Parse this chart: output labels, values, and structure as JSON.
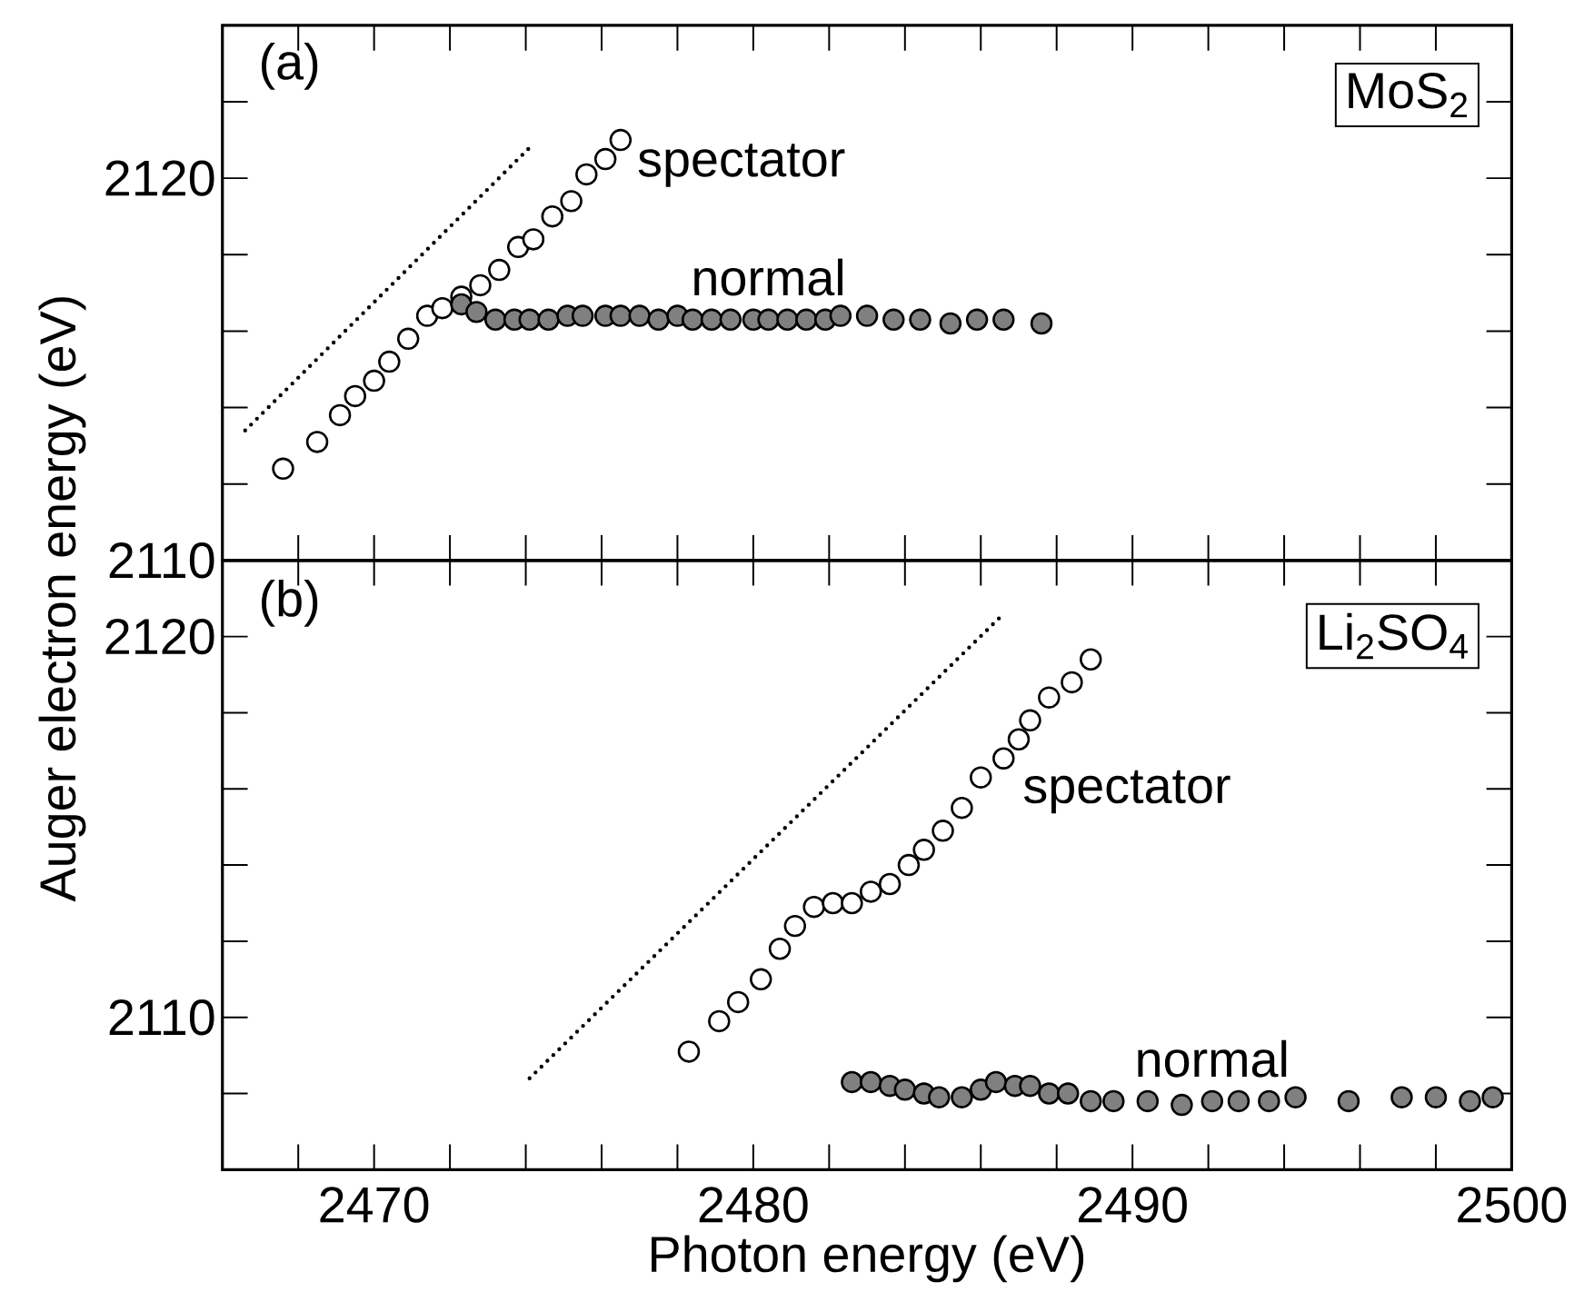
{
  "chart_data": [
    {
      "type": "scatter",
      "ylabel": "Auger electron energy (eV)",
      "annotations": [
        "(a)",
        "MoS$_{2}$"
      ],
      "xlim": [
        2466,
        2500
      ],
      "ylim": [
        2110,
        2124
      ],
      "xticks": [
        {
          "value": 2468,
          "label": null
        },
        2470,
        {
          "value": 2472,
          "label": null
        },
        {
          "value": 2474,
          "label": null
        },
        {
          "value": 2476,
          "label": null
        },
        {
          "value": 2478,
          "label": null
        },
        2480,
        {
          "value": 2482,
          "label": null
        },
        {
          "value": 2484,
          "label": null
        },
        {
          "value": 2486,
          "label": null
        },
        {
          "value": 2488,
          "label": null
        },
        2490,
        {
          "value": 2492,
          "label": null
        },
        {
          "value": 2494,
          "label": null
        },
        {
          "value": 2496,
          "label": null
        },
        {
          "value": 2498,
          "label": null
        }
      ],
      "yticks": [
        2110,
        {
          "value": 2112,
          "label": null
        },
        {
          "value": 2114,
          "label": null
        },
        {
          "value": 2116,
          "label": null
        },
        {
          "value": 2118,
          "label": null
        },
        2120,
        {
          "value": 2122,
          "label": null
        }
      ],
      "tick_labels": "y",
      "series": [
        {
          "type": "line",
          "color": "#000000",
          "line_style": "dotted",
          "marker": "none",
          "x": [
            2466.6,
            2474.1
          ],
          "values": [
            2113.4,
            2120.8
          ]
        },
        {
          "name": "spectator",
          "color": "#000000",
          "marker": "circle",
          "x": [
            2467.6,
            2468.5,
            2469.1,
            2469.5,
            2470.0,
            2470.4,
            2470.9,
            2471.4,
            2471.8,
            2472.3,
            2472.8,
            2473.3,
            2473.8,
            2474.2,
            2474.7,
            2475.2,
            2475.6,
            2476.1,
            2476.5
          ],
          "values": [
            2112.4,
            2113.1,
            2113.8,
            2114.3,
            2114.7,
            2115.2,
            2115.8,
            2116.4,
            2116.6,
            2116.9,
            2117.2,
            2117.6,
            2118.2,
            2118.4,
            2119.0,
            2119.4,
            2120.1,
            2120.5,
            2121.0
          ]
        },
        {
          "name": "normal",
          "color": "#808080",
          "marker": "circle",
          "x": [
            2472.3,
            2472.7,
            2473.2,
            2473.7,
            2474.1,
            2474.6,
            2475.1,
            2475.5,
            2476.1,
            2476.5,
            2477.0,
            2477.5,
            2478.0,
            2478.4,
            2478.9,
            2479.4,
            2480.0,
            2480.4,
            2480.9,
            2481.4,
            2481.9,
            2482.3,
            2483.0,
            2483.7,
            2484.4,
            2485.2,
            2485.9,
            2486.6,
            2487.6
          ],
          "values": [
            2116.7,
            2116.5,
            2116.3,
            2116.3,
            2116.3,
            2116.3,
            2116.4,
            2116.4,
            2116.4,
            2116.4,
            2116.4,
            2116.3,
            2116.4,
            2116.3,
            2116.3,
            2116.3,
            2116.3,
            2116.3,
            2116.3,
            2116.3,
            2116.3,
            2116.4,
            2116.4,
            2116.3,
            2116.3,
            2116.2,
            2116.3,
            2116.3,
            2116.2
          ]
        }
      ]
    },
    {
      "type": "scatter",
      "xlabel": "Photon energy (eV)",
      "annotations": [
        "(b)",
        "Li$_{2}$SO$_{4}$"
      ],
      "xlim": [
        2466,
        2500
      ],
      "ylim": [
        2106,
        2122
      ],
      "xticks": [
        {
          "value": 2468,
          "label": null
        },
        2470,
        {
          "value": 2472,
          "label": null
        },
        {
          "value": 2474,
          "label": null
        },
        {
          "value": 2476,
          "label": null
        },
        {
          "value": 2478,
          "label": null
        },
        2480,
        {
          "value": 2482,
          "label": null
        },
        {
          "value": 2484,
          "label": null
        },
        {
          "value": 2486,
          "label": null
        },
        {
          "value": 2488,
          "label": null
        },
        2490,
        {
          "value": 2492,
          "label": null
        },
        {
          "value": 2494,
          "label": null
        },
        {
          "value": 2496,
          "label": null
        },
        {
          "value": 2498,
          "label": null
        },
        2500
      ],
      "yticks": [
        {
          "value": 2108,
          "label": null
        },
        2110,
        {
          "value": 2112,
          "label": null
        },
        {
          "value": 2114,
          "label": null
        },
        {
          "value": 2116,
          "label": null
        },
        {
          "value": 2118,
          "label": null
        },
        2120
      ],
      "series": [
        {
          "type": "line",
          "color": "#000000",
          "line_style": "dotted",
          "marker": "none",
          "x": [
            2474.1,
            2486.5
          ],
          "values": [
            2108.4,
            2120.5
          ]
        },
        {
          "name": "spectator",
          "color": "#000000",
          "marker": "circle",
          "x": [
            2478.3,
            2479.1,
            2479.6,
            2480.2,
            2480.7,
            2481.1,
            2481.6,
            2482.1,
            2482.6,
            2483.1,
            2483.6,
            2484.1,
            2484.5,
            2485.0,
            2485.5,
            2486.0,
            2486.6,
            2487.0,
            2487.3,
            2487.8,
            2488.4,
            2488.9
          ],
          "values": [
            2109.1,
            2109.9,
            2110.4,
            2111.0,
            2111.8,
            2112.4,
            2112.9,
            2113.0,
            2113.0,
            2113.3,
            2113.5,
            2114.0,
            2114.4,
            2114.9,
            2115.5,
            2116.3,
            2116.8,
            2117.3,
            2117.8,
            2118.4,
            2118.8,
            2119.4
          ]
        },
        {
          "name": "normal",
          "color": "#808080",
          "marker": "circle",
          "x": [
            2482.6,
            2483.1,
            2483.6,
            2484.0,
            2484.5,
            2484.9,
            2485.5,
            2486.0,
            2486.4,
            2486.9,
            2487.3,
            2487.8,
            2488.3,
            2488.9,
            2489.5,
            2490.4,
            2491.3,
            2492.1,
            2492.8,
            2493.6,
            2494.3,
            2495.7,
            2497.1,
            2498.0,
            2498.9,
            2499.5
          ],
          "values": [
            2108.3,
            2108.3,
            2108.2,
            2108.1,
            2108.0,
            2107.9,
            2107.9,
            2108.1,
            2108.3,
            2108.2,
            2108.2,
            2108.0,
            2108.0,
            2107.8,
            2107.8,
            2107.8,
            2107.7,
            2107.8,
            2107.8,
            2107.8,
            2107.9,
            2107.8,
            2107.9,
            2107.9,
            2107.8,
            2107.9
          ]
        }
      ]
    }
  ]
}
